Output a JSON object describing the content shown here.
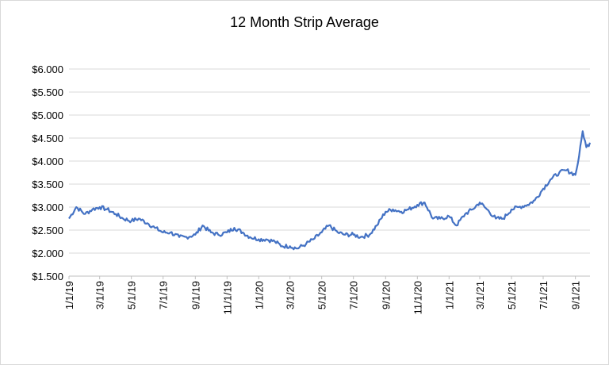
{
  "chart_data": {
    "type": "line",
    "title": "12 Month Strip Average",
    "xlabel": "",
    "ylabel": "",
    "ylim": [
      1.5,
      6.0
    ],
    "y_ticks": [
      "$1.500",
      "$2.000",
      "$2.500",
      "$3.000",
      "$3.500",
      "$4.000",
      "$4.500",
      "$5.000",
      "$5.500",
      "$6.000"
    ],
    "y_tick_values": [
      1.5,
      2.0,
      2.5,
      3.0,
      3.5,
      4.0,
      4.5,
      5.0,
      5.5,
      6.0
    ],
    "x_ticks": [
      "1/1/19",
      "3/1/19",
      "5/1/19",
      "7/1/19",
      "9/1/19",
      "11/1/19",
      "1/1/20",
      "3/1/20",
      "5/1/20",
      "7/1/20",
      "9/1/20",
      "11/1/20",
      "1/1/21",
      "3/1/21",
      "5/1/21",
      "7/1/21",
      "9/1/21"
    ],
    "grid": "horizontal",
    "legend": "none",
    "line_color": "#4472c4",
    "series": [
      {
        "x": [
          "2019-01-01",
          "2019-01-15",
          "2019-02-01",
          "2019-02-15",
          "2019-03-01",
          "2019-03-15",
          "2019-04-01",
          "2019-04-15",
          "2019-05-01",
          "2019-05-15",
          "2019-06-01",
          "2019-06-15",
          "2019-07-01",
          "2019-07-15",
          "2019-08-01",
          "2019-08-15",
          "2019-09-01",
          "2019-09-15",
          "2019-10-01",
          "2019-10-15",
          "2019-11-01",
          "2019-11-15",
          "2019-12-01",
          "2019-12-15",
          "2020-01-01",
          "2020-01-15",
          "2020-02-01",
          "2020-02-15",
          "2020-03-01",
          "2020-03-15",
          "2020-04-01",
          "2020-04-15",
          "2020-05-01",
          "2020-05-15",
          "2020-06-01",
          "2020-06-15",
          "2020-07-01",
          "2020-07-15",
          "2020-08-01",
          "2020-08-15",
          "2020-09-01",
          "2020-09-15",
          "2020-10-01",
          "2020-10-15",
          "2020-11-01",
          "2020-11-15",
          "2020-12-01",
          "2020-12-15",
          "2021-01-01",
          "2021-01-15",
          "2021-02-01",
          "2021-02-15",
          "2021-03-01",
          "2021-03-15",
          "2021-04-01",
          "2021-04-15",
          "2021-05-01",
          "2021-05-15",
          "2021-06-01",
          "2021-06-15",
          "2021-07-01",
          "2021-07-15",
          "2021-08-01",
          "2021-08-15",
          "2021-09-01",
          "2021-09-08",
          "2021-09-15",
          "2021-09-22",
          "2021-09-29"
        ],
        "values": [
          2.75,
          3.0,
          2.85,
          2.95,
          3.0,
          2.95,
          2.85,
          2.75,
          2.7,
          2.75,
          2.65,
          2.55,
          2.45,
          2.45,
          2.35,
          2.35,
          2.4,
          2.6,
          2.45,
          2.4,
          2.45,
          2.55,
          2.45,
          2.35,
          2.3,
          2.3,
          2.25,
          2.15,
          2.15,
          2.1,
          2.2,
          2.3,
          2.45,
          2.6,
          2.45,
          2.4,
          2.4,
          2.35,
          2.4,
          2.6,
          2.9,
          2.95,
          2.9,
          2.95,
          3.05,
          3.1,
          2.75,
          2.75,
          2.8,
          2.6,
          2.85,
          2.95,
          3.1,
          2.95,
          2.75,
          2.75,
          2.95,
          3.0,
          3.05,
          3.15,
          3.4,
          3.6,
          3.75,
          3.8,
          3.7,
          4.1,
          4.65,
          4.3,
          4.4
        ]
      }
    ]
  }
}
